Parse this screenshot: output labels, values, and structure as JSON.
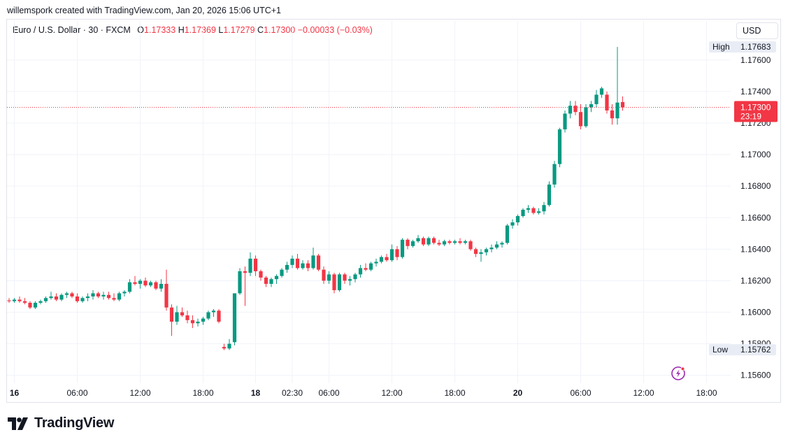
{
  "header": {
    "credit": "willemspork created with TradingView.com, Jan 20, 2026 15:06 UTC+1"
  },
  "legend": {
    "symbol": "Euro / U.S. Dollar · 30 · FXCM",
    "open_label": "O",
    "open": "1.17333",
    "high_label": "H",
    "high": "1.17369",
    "low_label": "L",
    "low": "1.17279",
    "close_label": "C",
    "close": "1.17300",
    "change": "−0.00033 (−0.03%)"
  },
  "currency_button": "USD",
  "brand": {
    "name": "TradingView"
  },
  "colors": {
    "up": "#089981",
    "down": "#f23645",
    "grid": "#f0f3fa",
    "axis_text": "#131722",
    "tag_bg": "#e8ecf5"
  },
  "icons": {
    "logo": "tradingview-logo-icon",
    "alert": "lightning-alert-icon"
  },
  "chart_data": {
    "type": "candlestick",
    "timeframe": "30",
    "ylim": [
      1.1555,
      1.1775
    ],
    "y_ticks": [
      "1.17600",
      "1.17400",
      "1.17200",
      "1.17000",
      "1.16800",
      "1.16600",
      "1.16400",
      "1.16200",
      "1.16000",
      "1.15800",
      "1.15600"
    ],
    "x_ticks": [
      {
        "label": "16",
        "bar": 1,
        "bold": true
      },
      {
        "label": "06:00",
        "bar": 13
      },
      {
        "label": "12:00",
        "bar": 25
      },
      {
        "label": "18:00",
        "bar": 37
      },
      {
        "label": "18",
        "bar": 47,
        "bold": true
      },
      {
        "label": "02:30",
        "bar": 54
      },
      {
        "label": "06:00",
        "bar": 61
      },
      {
        "label": "12:00",
        "bar": 73
      },
      {
        "label": "18:00",
        "bar": 85
      },
      {
        "label": "20",
        "bar": 97,
        "bold": true
      },
      {
        "label": "06:00",
        "bar": 109
      },
      {
        "label": "12:00",
        "bar": 121
      },
      {
        "label": "18:00",
        "bar": 133
      }
    ],
    "high_tag": {
      "label": "High",
      "value": "1.17683",
      "price": 1.17683
    },
    "low_tag": {
      "label": "Low",
      "value": "1.15762",
      "price": 1.15762
    },
    "last_price": {
      "value": "1.17300",
      "countdown": "23:19",
      "price": 1.173
    },
    "candles": [
      [
        1.16075,
        1.1609,
        1.1606,
        1.1607
      ],
      [
        1.1607,
        1.1609,
        1.1606,
        1.1608
      ],
      [
        1.1608,
        1.161,
        1.1606,
        1.1607
      ],
      [
        1.1607,
        1.1609,
        1.1605,
        1.1606
      ],
      [
        1.1606,
        1.1607,
        1.1602,
        1.1603
      ],
      [
        1.1603,
        1.1607,
        1.1602,
        1.1606
      ],
      [
        1.1606,
        1.1608,
        1.1605,
        1.1607
      ],
      [
        1.1607,
        1.161,
        1.1606,
        1.1609
      ],
      [
        1.1609,
        1.1613,
        1.1608,
        1.161
      ],
      [
        1.161,
        1.1612,
        1.1607,
        1.1608
      ],
      [
        1.1608,
        1.1612,
        1.1607,
        1.1611
      ],
      [
        1.1611,
        1.1613,
        1.1609,
        1.1612
      ],
      [
        1.1612,
        1.1613,
        1.1609,
        1.161
      ],
      [
        1.161,
        1.1612,
        1.1606,
        1.1607
      ],
      [
        1.1607,
        1.161,
        1.1606,
        1.1609
      ],
      [
        1.1609,
        1.1612,
        1.1607,
        1.161
      ],
      [
        1.161,
        1.1614,
        1.1608,
        1.1612
      ],
      [
        1.1612,
        1.1613,
        1.1609,
        1.161
      ],
      [
        1.161,
        1.1613,
        1.1608,
        1.1611
      ],
      [
        1.1611,
        1.1613,
        1.1608,
        1.1609
      ],
      [
        1.1609,
        1.1612,
        1.1607,
        1.1608
      ],
      [
        1.1608,
        1.1613,
        1.1607,
        1.1612
      ],
      [
        1.1612,
        1.1614,
        1.161,
        1.1613
      ],
      [
        1.1613,
        1.1621,
        1.1612,
        1.1619
      ],
      [
        1.1619,
        1.1623,
        1.1617,
        1.1618
      ],
      [
        1.1618,
        1.1621,
        1.1615,
        1.162
      ],
      [
        1.162,
        1.1622,
        1.1616,
        1.1617
      ],
      [
        1.1617,
        1.162,
        1.1616,
        1.1619
      ],
      [
        1.1619,
        1.162,
        1.1614,
        1.1615
      ],
      [
        1.1615,
        1.1621,
        1.1613,
        1.1618
      ],
      [
        1.1618,
        1.1627,
        1.1601,
        1.1603
      ],
      [
        1.1603,
        1.1605,
        1.1585,
        1.1594
      ],
      [
        1.1594,
        1.1604,
        1.1592,
        1.16
      ],
      [
        1.16,
        1.1603,
        1.1597,
        1.1598
      ],
      [
        1.1598,
        1.1601,
        1.1593,
        1.1595
      ],
      [
        1.1595,
        1.1598,
        1.159,
        1.1593
      ],
      [
        1.1593,
        1.1596,
        1.1591,
        1.1594
      ],
      [
        1.1594,
        1.1597,
        1.1592,
        1.1596
      ],
      [
        1.1596,
        1.1601,
        1.1595,
        1.16
      ],
      [
        1.16,
        1.1602,
        1.1597,
        1.1601
      ],
      [
        1.1601,
        1.1602,
        1.1593,
        1.1594
      ],
      [
        1.1578,
        1.158,
        1.1576,
        1.1577
      ],
      [
        1.1577,
        1.1583,
        1.1576,
        1.158
      ],
      [
        1.1581,
        1.1612,
        1.1579,
        1.1612
      ],
      [
        1.1612,
        1.1628,
        1.1611,
        1.1626
      ],
      [
        1.1626,
        1.1629,
        1.1604,
        1.1625
      ],
      [
        1.1625,
        1.1638,
        1.1623,
        1.1634
      ],
      [
        1.1634,
        1.1636,
        1.1623,
        1.1626
      ],
      [
        1.1626,
        1.1627,
        1.162,
        1.1622
      ],
      [
        1.1622,
        1.1623,
        1.1616,
        1.1618
      ],
      [
        1.1618,
        1.1622,
        1.1616,
        1.1621
      ],
      [
        1.1621,
        1.1624,
        1.1618,
        1.1623
      ],
      [
        1.1623,
        1.1628,
        1.1622,
        1.1627
      ],
      [
        1.1627,
        1.1632,
        1.1625,
        1.163
      ],
      [
        1.163,
        1.1636,
        1.1628,
        1.1634
      ],
      [
        1.1634,
        1.1637,
        1.1627,
        1.1628
      ],
      [
        1.1628,
        1.1633,
        1.1627,
        1.1631
      ],
      [
        1.1631,
        1.1633,
        1.1626,
        1.1628
      ],
      [
        1.1628,
        1.1641,
        1.1627,
        1.1636
      ],
      [
        1.1636,
        1.1637,
        1.1626,
        1.1627
      ],
      [
        1.1627,
        1.1629,
        1.1618,
        1.162
      ],
      [
        1.162,
        1.1626,
        1.1618,
        1.1624
      ],
      [
        1.1624,
        1.1625,
        1.1612,
        1.1614
      ],
      [
        1.1614,
        1.1625,
        1.1613,
        1.1624
      ],
      [
        1.1624,
        1.1625,
        1.1618,
        1.162
      ],
      [
        1.162,
        1.1623,
        1.1617,
        1.1621
      ],
      [
        1.1621,
        1.1625,
        1.1619,
        1.1624
      ],
      [
        1.1624,
        1.163,
        1.1622,
        1.1628
      ],
      [
        1.1628,
        1.1631,
        1.1626,
        1.1627
      ],
      [
        1.1627,
        1.1632,
        1.1626,
        1.1631
      ],
      [
        1.1631,
        1.1634,
        1.1629,
        1.1632
      ],
      [
        1.1632,
        1.1636,
        1.1631,
        1.1635
      ],
      [
        1.1635,
        1.1637,
        1.1632,
        1.1633
      ],
      [
        1.1633,
        1.1643,
        1.1632,
        1.164
      ],
      [
        1.164,
        1.1642,
        1.1633,
        1.1635
      ],
      [
        1.1635,
        1.1647,
        1.1634,
        1.1646
      ],
      [
        1.1646,
        1.1647,
        1.164,
        1.1642
      ],
      [
        1.1642,
        1.1646,
        1.1641,
        1.1645
      ],
      [
        1.1645,
        1.1649,
        1.1644,
        1.1647
      ],
      [
        1.1647,
        1.1648,
        1.1642,
        1.1643
      ],
      [
        1.1643,
        1.1648,
        1.1642,
        1.1647
      ],
      [
        1.1647,
        1.1648,
        1.1643,
        1.1644
      ],
      [
        1.1644,
        1.1646,
        1.1642,
        1.1643
      ],
      [
        1.1643,
        1.1646,
        1.1642,
        1.1645
      ],
      [
        1.1645,
        1.1646,
        1.1643,
        1.1644
      ],
      [
        1.1644,
        1.1646,
        1.1643,
        1.1645
      ],
      [
        1.1645,
        1.1647,
        1.1643,
        1.1644
      ],
      [
        1.1644,
        1.1646,
        1.1643,
        1.1645
      ],
      [
        1.1645,
        1.1646,
        1.1639,
        1.164
      ],
      [
        1.164,
        1.1641,
        1.1635,
        1.1637
      ],
      [
        1.1637,
        1.164,
        1.1632,
        1.1638
      ],
      [
        1.1638,
        1.1641,
        1.1636,
        1.164
      ],
      [
        1.164,
        1.1643,
        1.1638,
        1.1641
      ],
      [
        1.1641,
        1.1645,
        1.164,
        1.1643
      ],
      [
        1.1643,
        1.1645,
        1.1641,
        1.1644
      ],
      [
        1.1644,
        1.1656,
        1.1643,
        1.1655
      ],
      [
        1.1655,
        1.1659,
        1.1653,
        1.1657
      ],
      [
        1.1657,
        1.1662,
        1.1655,
        1.1661
      ],
      [
        1.1661,
        1.1666,
        1.166,
        1.1665
      ],
      [
        1.1665,
        1.1668,
        1.1663,
        1.1666
      ],
      [
        1.1666,
        1.1667,
        1.1662,
        1.1663
      ],
      [
        1.1663,
        1.1666,
        1.1662,
        1.1664
      ],
      [
        1.1664,
        1.167,
        1.1662,
        1.1668
      ],
      [
        1.1668,
        1.1683,
        1.1667,
        1.1681
      ],
      [
        1.1681,
        1.1696,
        1.1679,
        1.1694
      ],
      [
        1.1694,
        1.1717,
        1.1692,
        1.1716
      ],
      [
        1.1716,
        1.1728,
        1.1714,
        1.1726
      ],
      [
        1.1726,
        1.1734,
        1.1723,
        1.1731
      ],
      [
        1.1731,
        1.1734,
        1.1725,
        1.1727
      ],
      [
        1.1727,
        1.1732,
        1.1716,
        1.1718
      ],
      [
        1.1718,
        1.1732,
        1.1717,
        1.173
      ],
      [
        1.173,
        1.1734,
        1.1727,
        1.1732
      ],
      [
        1.1732,
        1.1741,
        1.173,
        1.1738
      ],
      [
        1.1738,
        1.1743,
        1.1736,
        1.1742
      ],
      [
        1.1738,
        1.174,
        1.1726,
        1.1728
      ],
      [
        1.1728,
        1.1732,
        1.1719,
        1.1723
      ],
      [
        1.1723,
        1.17683,
        1.1719,
        1.1733
      ],
      [
        1.17333,
        1.17369,
        1.17279,
        1.173
      ]
    ]
  }
}
